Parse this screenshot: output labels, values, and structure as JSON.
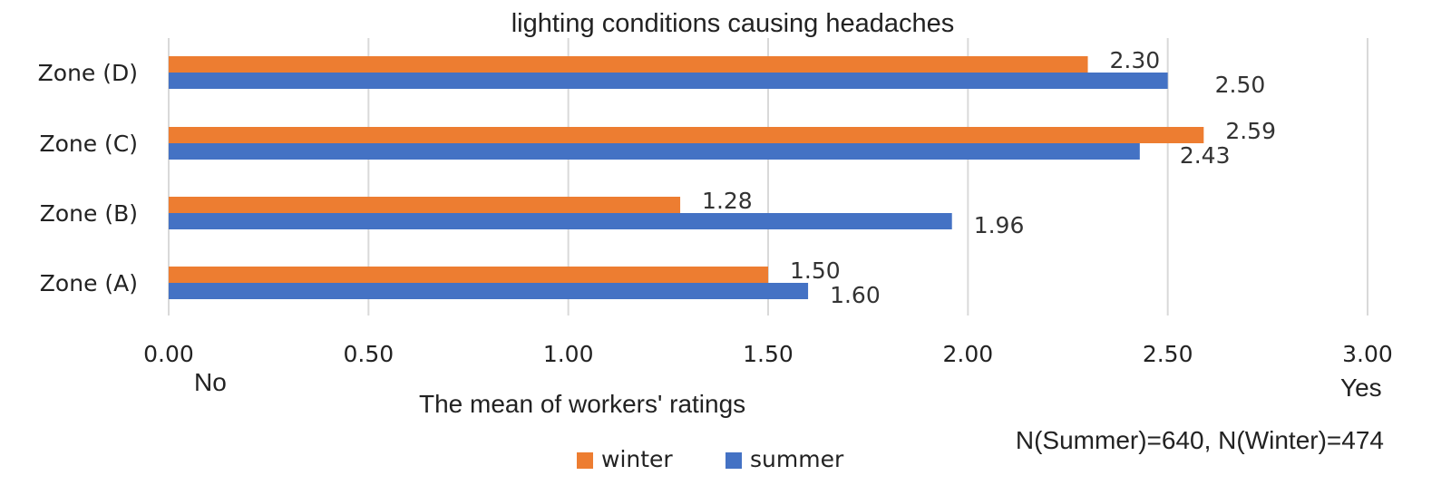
{
  "chart_data": {
    "type": "bar",
    "orientation": "horizontal",
    "title": "lighting conditions causing headaches",
    "xlabel": "The mean of workers' ratings",
    "ylabel": "",
    "categories": [
      "Zone (D)",
      "Zone (C)",
      "Zone (B)",
      "Zone (A)"
    ],
    "series": [
      {
        "name": "winter",
        "color": "#ED7D31",
        "values": [
          2.3,
          2.59,
          1.28,
          1.5
        ],
        "labels": [
          "2.30",
          "2.59",
          "1.28",
          "1.50"
        ]
      },
      {
        "name": "summer",
        "color": "#4472C4",
        "values": [
          2.5,
          2.43,
          1.96,
          1.6
        ],
        "labels": [
          "2.50",
          "2.43",
          "1.96",
          "1.60"
        ]
      }
    ],
    "xlim": [
      0,
      3
    ],
    "xticks": [
      "0.00",
      "0.50",
      "1.00",
      "1.50",
      "2.00",
      "2.50",
      "3.00"
    ],
    "x_min_annotation": "No",
    "x_max_annotation": "Yes",
    "annotation": "N(Summer)=640, N(Winter)=474",
    "grid": true,
    "legend_position": "bottom"
  }
}
